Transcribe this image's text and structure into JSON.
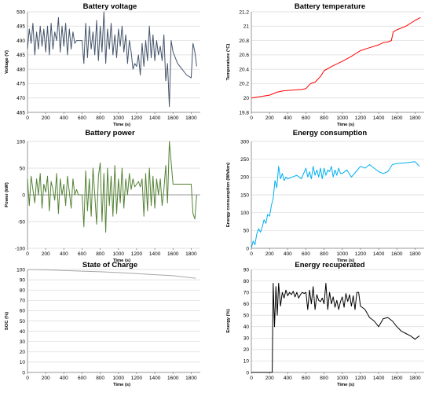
{
  "chart_data": [
    {
      "type": "line",
      "title": "Battery voltage",
      "xlabel": "Time (s)",
      "ylabel": "Voltage (V)",
      "xlim": [
        0,
        1900
      ],
      "xticks": [
        0,
        200,
        400,
        600,
        800,
        1000,
        1200,
        1400,
        1600,
        1800
      ],
      "ylim": [
        465,
        500
      ],
      "yticks": [
        465,
        470,
        475,
        480,
        485,
        490,
        495,
        500
      ],
      "color": "#44546a",
      "x": [
        0,
        20,
        40,
        60,
        80,
        100,
        120,
        140,
        160,
        180,
        200,
        220,
        240,
        260,
        280,
        300,
        320,
        340,
        360,
        380,
        400,
        420,
        440,
        460,
        480,
        500,
        520,
        540,
        560,
        580,
        600,
        620,
        640,
        660,
        680,
        700,
        720,
        740,
        760,
        780,
        800,
        820,
        840,
        860,
        880,
        900,
        920,
        940,
        960,
        980,
        1000,
        1020,
        1040,
        1060,
        1080,
        1100,
        1120,
        1140,
        1160,
        1180,
        1200,
        1220,
        1240,
        1260,
        1280,
        1300,
        1320,
        1340,
        1360,
        1380,
        1400,
        1420,
        1440,
        1460,
        1480,
        1500,
        1520,
        1540,
        1560,
        1580,
        1600,
        1650,
        1700,
        1750,
        1800,
        1820,
        1840,
        1860
      ],
      "y": [
        487,
        494,
        489,
        496,
        485,
        493,
        487,
        495,
        488,
        494,
        486,
        495,
        485,
        496,
        487,
        493,
        490,
        498,
        486,
        495,
        488,
        496,
        485,
        494,
        487,
        493,
        489,
        490,
        490,
        490,
        490,
        482,
        496,
        484,
        495,
        487,
        493,
        485,
        497,
        483,
        495,
        486,
        500,
        482,
        494,
        487,
        496,
        485,
        492,
        484,
        494,
        488,
        495,
        486,
        492,
        482,
        490,
        486,
        480,
        482,
        481,
        485,
        478,
        489,
        481,
        490,
        483,
        495,
        484,
        492,
        483,
        490,
        485,
        488,
        483,
        492,
        476,
        482,
        467,
        490,
        486,
        482,
        480,
        478,
        477,
        489,
        486,
        481
      ]
    },
    {
      "type": "line",
      "title": "Battery temperature",
      "xlabel": "Time (s)",
      "ylabel": "Temperature (°C)",
      "xlim": [
        0,
        1900
      ],
      "xticks": [
        0,
        200,
        400,
        600,
        800,
        1000,
        1200,
        1400,
        1600,
        1800
      ],
      "ylim": [
        19.8,
        21.2
      ],
      "yticks": [
        19.8,
        20,
        20.2,
        20.4,
        20.6,
        20.8,
        21,
        21.2
      ],
      "color": "#ff0000",
      "x": [
        0,
        100,
        200,
        280,
        350,
        450,
        560,
        600,
        650,
        700,
        760,
        800,
        900,
        1000,
        1100,
        1150,
        1200,
        1300,
        1400,
        1450,
        1500,
        1540,
        1560,
        1600,
        1700,
        1800,
        1860
      ],
      "y": [
        20.0,
        20.02,
        20.04,
        20.08,
        20.1,
        20.11,
        20.12,
        20.13,
        20.2,
        20.22,
        20.3,
        20.38,
        20.45,
        20.51,
        20.58,
        20.62,
        20.66,
        20.7,
        20.74,
        20.77,
        20.78,
        20.8,
        20.92,
        20.95,
        21.0,
        21.08,
        21.12
      ]
    },
    {
      "type": "line",
      "title": "Battery power",
      "xlabel": "Time (s)",
      "ylabel": "Power (kW)",
      "xlim": [
        0,
        1900
      ],
      "xticks": [
        0,
        200,
        400,
        600,
        800,
        1000,
        1200,
        1400,
        1600,
        1800
      ],
      "ylim": [
        -100,
        100
      ],
      "yticks": [
        -100,
        -50,
        0,
        50,
        100
      ],
      "color": "#548235",
      "x": [
        0,
        20,
        40,
        60,
        80,
        100,
        120,
        140,
        160,
        180,
        200,
        220,
        240,
        260,
        280,
        300,
        320,
        340,
        360,
        380,
        400,
        420,
        440,
        460,
        480,
        500,
        520,
        540,
        560,
        580,
        600,
        620,
        640,
        660,
        680,
        700,
        720,
        740,
        760,
        780,
        800,
        820,
        840,
        860,
        880,
        900,
        920,
        940,
        960,
        980,
        1000,
        1020,
        1040,
        1060,
        1080,
        1100,
        1120,
        1140,
        1160,
        1180,
        1200,
        1220,
        1240,
        1260,
        1280,
        1300,
        1320,
        1340,
        1360,
        1380,
        1400,
        1420,
        1440,
        1460,
        1480,
        1500,
        1520,
        1540,
        1560,
        1600,
        1650,
        1700,
        1750,
        1800,
        1820,
        1840,
        1860
      ],
      "y": [
        30,
        -20,
        35,
        10,
        -15,
        30,
        0,
        40,
        -25,
        20,
        5,
        35,
        -30,
        25,
        10,
        -10,
        40,
        -35,
        30,
        0,
        20,
        -20,
        35,
        5,
        -25,
        30,
        0,
        10,
        0,
        0,
        0,
        -60,
        45,
        -30,
        30,
        -40,
        50,
        0,
        -55,
        35,
        60,
        -50,
        40,
        -70,
        50,
        -20,
        35,
        -40,
        55,
        -35,
        30,
        -15,
        50,
        -25,
        30,
        0,
        40,
        10,
        30,
        15,
        20,
        25,
        15,
        30,
        -40,
        40,
        -30,
        50,
        -20,
        35,
        -25,
        30,
        0,
        30,
        -20,
        10,
        55,
        -15,
        100,
        20,
        20,
        20,
        20,
        20,
        -35,
        -45,
        0
      ]
    },
    {
      "type": "line",
      "title": "Energy consumption",
      "xlabel": "Time (s)",
      "ylabel": "Energy consumption (Wh/km)",
      "xlim": [
        0,
        1900
      ],
      "xticks": [
        0,
        200,
        400,
        600,
        800,
        1000,
        1200,
        1400,
        1600,
        1800
      ],
      "ylim": [
        0,
        300
      ],
      "yticks": [
        0,
        50,
        100,
        150,
        200,
        250,
        300
      ],
      "color": "#00b0f0",
      "x": [
        0,
        20,
        40,
        60,
        80,
        100,
        120,
        140,
        160,
        180,
        200,
        220,
        240,
        260,
        280,
        300,
        320,
        340,
        360,
        380,
        400,
        450,
        500,
        550,
        600,
        620,
        640,
        660,
        680,
        700,
        720,
        740,
        760,
        780,
        800,
        820,
        840,
        860,
        880,
        900,
        920,
        940,
        960,
        980,
        1000,
        1050,
        1100,
        1150,
        1200,
        1250,
        1300,
        1350,
        1400,
        1450,
        1500,
        1550,
        1600,
        1700,
        1800,
        1830,
        1850
      ],
      "y": [
        0,
        20,
        10,
        40,
        55,
        45,
        60,
        80,
        70,
        95,
        90,
        120,
        140,
        190,
        170,
        230,
        195,
        210,
        190,
        200,
        195,
        200,
        205,
        195,
        225,
        200,
        215,
        195,
        230,
        205,
        220,
        200,
        225,
        195,
        225,
        205,
        220,
        215,
        230,
        200,
        220,
        205,
        225,
        210,
        210,
        220,
        200,
        215,
        230,
        225,
        235,
        225,
        215,
        210,
        215,
        235,
        238,
        240,
        243,
        235,
        230
      ]
    },
    {
      "type": "line",
      "title": "State of Charge",
      "xlabel": "Time (s)",
      "ylabel": "SOC (%)",
      "xlim": [
        0,
        1900
      ],
      "xticks": [
        0,
        200,
        400,
        600,
        800,
        1000,
        1200,
        1400,
        1600,
        1800
      ],
      "ylim": [
        0,
        100
      ],
      "yticks": [
        0,
        10,
        20,
        30,
        40,
        50,
        60,
        70,
        80,
        90,
        100
      ],
      "color": "#a6a6a6",
      "x": [
        0,
        200,
        400,
        600,
        800,
        1000,
        1200,
        1400,
        1600,
        1800,
        1850
      ],
      "y": [
        100,
        99.6,
        99,
        98.4,
        97.8,
        97,
        96,
        95,
        94,
        92,
        91.5
      ]
    },
    {
      "type": "line",
      "title": "Energy recuperated",
      "xlabel": "Time (s)",
      "ylabel": "Energy (%)",
      "xlim": [
        0,
        1900
      ],
      "xticks": [
        0,
        200,
        400,
        600,
        800,
        1000,
        1200,
        1400,
        1600,
        1800
      ],
      "ylim": [
        0,
        90
      ],
      "yticks": [
        0,
        10,
        20,
        30,
        40,
        50,
        60,
        70,
        80,
        90
      ],
      "color": "#000000",
      "x": [
        0,
        100,
        200,
        230,
        240,
        255,
        270,
        285,
        300,
        320,
        340,
        360,
        380,
        400,
        420,
        440,
        460,
        480,
        500,
        520,
        540,
        560,
        580,
        600,
        620,
        640,
        660,
        680,
        700,
        720,
        740,
        760,
        780,
        800,
        820,
        840,
        860,
        880,
        900,
        920,
        940,
        960,
        980,
        1000,
        1020,
        1040,
        1060,
        1080,
        1100,
        1120,
        1140,
        1160,
        1180,
        1200,
        1250,
        1300,
        1350,
        1400,
        1450,
        1500,
        1550,
        1600,
        1650,
        1700,
        1750,
        1800,
        1830,
        1850
      ],
      "y": [
        0,
        0,
        0,
        0,
        78,
        40,
        75,
        50,
        78,
        58,
        70,
        65,
        72,
        67,
        70,
        68,
        71,
        66,
        70,
        65,
        68,
        70,
        69,
        70,
        55,
        72,
        60,
        75,
        55,
        68,
        63,
        62,
        65,
        60,
        78,
        55,
        70,
        60,
        66,
        57,
        63,
        55,
        62,
        66,
        57,
        69,
        62,
        68,
        58,
        67,
        55,
        70,
        70,
        58,
        55,
        48,
        45,
        40,
        47,
        48,
        45,
        40,
        36,
        34,
        32,
        29,
        31,
        32
      ]
    }
  ]
}
